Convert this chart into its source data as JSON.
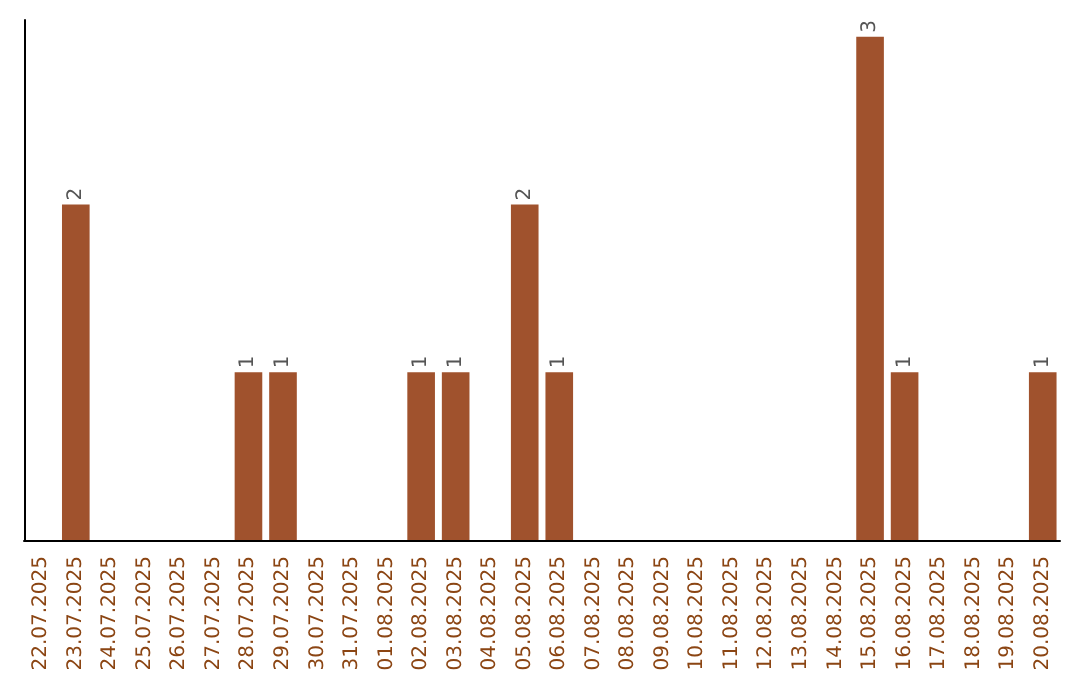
{
  "chart_data": {
    "type": "bar",
    "categories": [
      "22.07.2025",
      "23.07.2025",
      "24.07.2025",
      "25.07.2025",
      "26.07.2025",
      "27.07.2025",
      "28.07.2025",
      "29.07.2025",
      "30.07.2025",
      "31.07.2025",
      "01.08.2025",
      "02.08.2025",
      "03.08.2025",
      "04.08.2025",
      "05.08.2025",
      "06.08.2025",
      "07.08.2025",
      "08.08.2025",
      "09.08.2025",
      "10.08.2025",
      "11.08.2025",
      "12.08.2025",
      "13.08.2025",
      "14.08.2025",
      "15.08.2025",
      "16.08.2025",
      "17.08.2025",
      "18.08.2025",
      "19.08.2025",
      "20.08.2025"
    ],
    "values": [
      0,
      2,
      0,
      0,
      0,
      0,
      1,
      1,
      0,
      0,
      0,
      1,
      1,
      0,
      2,
      1,
      0,
      0,
      0,
      0,
      0,
      0,
      0,
      0,
      3,
      1,
      0,
      0,
      0,
      1
    ],
    "value_labels": [
      null,
      "2",
      null,
      null,
      null,
      null,
      "1",
      "1",
      null,
      null,
      null,
      "1",
      "1",
      null,
      "2",
      "1",
      null,
      null,
      null,
      null,
      null,
      null,
      null,
      null,
      "3",
      "1",
      null,
      null,
      null,
      "1"
    ],
    "color": "#a0522d",
    "ylim": [
      0,
      3.1
    ],
    "tick_labels": "x"
  }
}
